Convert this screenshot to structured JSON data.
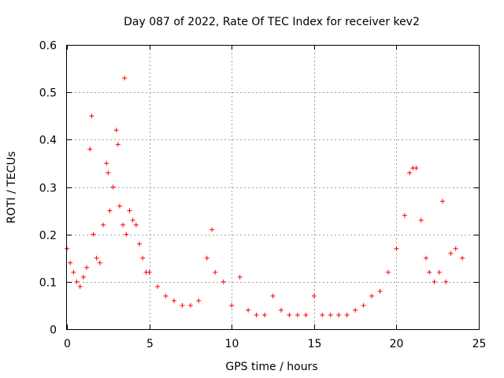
{
  "chart_data": {
    "type": "scatter",
    "title": "Day 087 of 2022, Rate Of TEC Index for receiver kev2",
    "xlabel": "GPS time / hours",
    "ylabel": "ROTI / TECUs",
    "xlim": [
      0,
      25
    ],
    "ylim": [
      0,
      0.6
    ],
    "xticks": [
      "0",
      "5",
      "10",
      "15",
      "20",
      "25"
    ],
    "yticks": [
      "0",
      "0.1",
      "0.2",
      "0.3",
      "0.4",
      "0.5",
      "0.6"
    ],
    "grid": true,
    "marker": "+",
    "color": "#ff0000",
    "series": [
      {
        "x": [
          0.0,
          0.2,
          0.4,
          0.6,
          0.8,
          1.0,
          1.2,
          1.4,
          1.5,
          1.6,
          1.8,
          2.0,
          2.2,
          2.4,
          2.5,
          2.6,
          2.8,
          3.0,
          3.1,
          3.2,
          3.4,
          3.5,
          3.6,
          3.8,
          4.0,
          4.2,
          4.4,
          4.6,
          4.8,
          5.0,
          5.5,
          6.0,
          6.5,
          7.0,
          7.5,
          8.0,
          8.5,
          8.8,
          9.0,
          9.5,
          10.0,
          10.5,
          11.0,
          11.5,
          12.0,
          12.5,
          13.0,
          13.5,
          14.0,
          14.5,
          15.0,
          15.5,
          16.0,
          16.5,
          17.0,
          17.5,
          18.0,
          18.5,
          19.0,
          19.5,
          20.0,
          20.5,
          20.8,
          21.0,
          21.2,
          21.5,
          21.8,
          22.0,
          22.3,
          22.6,
          22.8,
          23.0,
          23.3,
          23.6,
          24.0
        ],
        "y": [
          0.17,
          0.14,
          0.12,
          0.1,
          0.09,
          0.11,
          0.13,
          0.38,
          0.45,
          0.2,
          0.15,
          0.14,
          0.22,
          0.35,
          0.33,
          0.25,
          0.3,
          0.42,
          0.39,
          0.26,
          0.22,
          0.53,
          0.2,
          0.25,
          0.23,
          0.22,
          0.18,
          0.15,
          0.12,
          0.12,
          0.09,
          0.07,
          0.06,
          0.05,
          0.05,
          0.06,
          0.15,
          0.21,
          0.12,
          0.1,
          0.05,
          0.11,
          0.04,
          0.03,
          0.03,
          0.07,
          0.04,
          0.03,
          0.03,
          0.03,
          0.07,
          0.03,
          0.03,
          0.03,
          0.03,
          0.04,
          0.05,
          0.07,
          0.08,
          0.12,
          0.17,
          0.24,
          0.33,
          0.34,
          0.34,
          0.23,
          0.15,
          0.12,
          0.1,
          0.12,
          0.27,
          0.1,
          0.16,
          0.17,
          0.15
        ]
      }
    ]
  }
}
